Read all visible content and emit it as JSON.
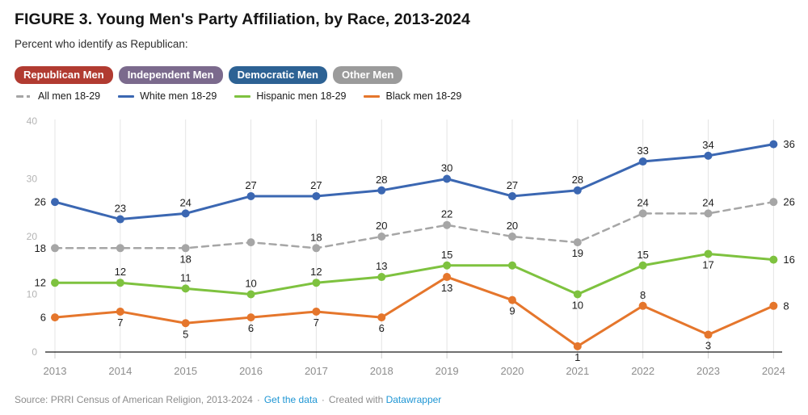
{
  "header": {
    "title": "FIGURE 3. Young Men's Party Affiliation, by Race, 2013-2024",
    "subtitle": "Percent who identify as Republican:"
  },
  "tabs": [
    {
      "label": "Republican Men",
      "color": "#b13b31",
      "active": true
    },
    {
      "label": "Independent Men",
      "color": "#7b6a8d",
      "active": false
    },
    {
      "label": "Democratic Men",
      "color": "#2d6294",
      "active": false
    },
    {
      "label": "Other Men",
      "color": "#9b9b9b",
      "active": false
    }
  ],
  "legend": [
    {
      "label": "All men 18-29",
      "color": "#a6a6a6",
      "dashed": true
    },
    {
      "label": "White men 18-29",
      "color": "#3b67b2",
      "dashed": false
    },
    {
      "label": "Hispanic men 18-29",
      "color": "#7ec23f",
      "dashed": false
    },
    {
      "label": "Black men 18-29",
      "color": "#e5762c",
      "dashed": false
    }
  ],
  "chart_data": {
    "type": "line",
    "title": "FIGURE 3. Young Men's Party Affiliation, by Race, 2013-2024",
    "subtitle": "Percent who identify as Republican:",
    "x": [
      "2013",
      "2014",
      "2015",
      "2016",
      "2017",
      "2018",
      "2019",
      "2020",
      "2021",
      "2022",
      "2023",
      "2024"
    ],
    "ylim": [
      0,
      40
    ],
    "yticks": [
      0,
      10,
      20,
      30,
      40
    ],
    "grid": "vertical-only",
    "legend_position": "top-left",
    "series": [
      {
        "name": "All men 18-29",
        "color": "#a6a6a6",
        "dashed": true,
        "values": [
          18,
          18,
          18,
          19,
          18,
          20,
          22,
          20,
          19,
          24,
          24,
          26
        ],
        "labels": [
          "18",
          null,
          "18",
          null,
          "18",
          "20",
          "22",
          "20",
          "19",
          "24",
          "24",
          "26"
        ],
        "label_pos": [
          "l",
          null,
          "b",
          null,
          "a",
          "a",
          "a",
          "a",
          "b",
          "a",
          "a",
          "r"
        ]
      },
      {
        "name": "White men 18-29",
        "color": "#3b67b2",
        "dashed": false,
        "values": [
          26,
          23,
          24,
          27,
          27,
          28,
          30,
          27,
          28,
          33,
          34,
          36
        ],
        "labels": [
          "26",
          "23",
          "24",
          "27",
          "27",
          "28",
          "30",
          "27",
          "28",
          "33",
          "34",
          "36"
        ],
        "label_pos": [
          "l",
          "a",
          "a",
          "a",
          "a",
          "a",
          "a",
          "a",
          "a",
          "a",
          "a",
          "r"
        ]
      },
      {
        "name": "Hispanic men 18-29",
        "color": "#7ec23f",
        "dashed": false,
        "values": [
          12,
          12,
          11,
          10,
          12,
          13,
          15,
          15,
          10,
          15,
          17,
          16
        ],
        "labels": [
          "12",
          "12",
          "11",
          "10",
          "12",
          "13",
          "15",
          null,
          "10",
          "15",
          "17",
          "16"
        ],
        "label_pos": [
          "l",
          "a",
          "a",
          "a",
          "a",
          "a",
          "a",
          null,
          "b",
          "a",
          "b",
          "r"
        ]
      },
      {
        "name": "Black men 18-29",
        "color": "#e5762c",
        "dashed": false,
        "values": [
          6,
          7,
          5,
          6,
          7,
          6,
          13,
          9,
          1,
          8,
          3,
          8
        ],
        "labels": [
          "6",
          "7",
          "5",
          "6",
          "7",
          "6",
          "13",
          "9",
          "1",
          "8",
          "3",
          "8"
        ],
        "label_pos": [
          "l",
          "b",
          "b",
          "b",
          "b",
          "b",
          "b",
          "b",
          "b",
          "a",
          "b",
          "r"
        ]
      }
    ]
  },
  "footer": {
    "source": "Source: PRRI Census of American Religion, 2013-2024",
    "dot": "·",
    "get_data": "Get the data",
    "created_with": "Created with",
    "datawrapper": "Datawrapper"
  }
}
